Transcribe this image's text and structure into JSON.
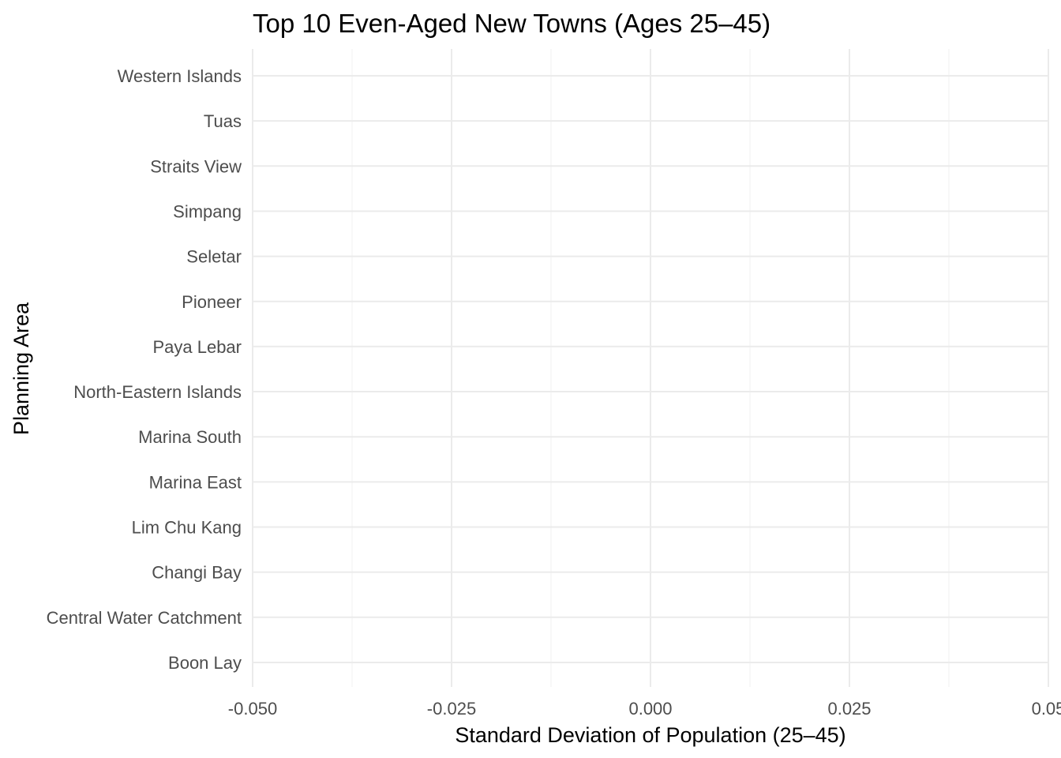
{
  "chart_data": {
    "type": "bar",
    "orientation": "horizontal",
    "title": "Top 10 Even-Aged New Towns (Ages 25–45)",
    "xlabel": "Standard Deviation of Population (25–45)",
    "ylabel": "Planning Area",
    "categories": [
      "Boon Lay",
      "Central Water Catchment",
      "Changi Bay",
      "Lim Chu Kang",
      "Marina East",
      "Marina South",
      "North-Eastern Islands",
      "Paya Lebar",
      "Pioneer",
      "Seletar",
      "Simpang",
      "Straits View",
      "Tuas",
      "Western Islands"
    ],
    "values": [
      0,
      0,
      0,
      0,
      0,
      0,
      0,
      0,
      0,
      0,
      0,
      0,
      0,
      0
    ],
    "xlim": [
      -0.05,
      0.05
    ],
    "xticks": [
      -0.05,
      -0.025,
      0,
      0.025,
      0.05
    ],
    "xtick_labels": [
      "-0.050",
      "-0.025",
      "0.000",
      "0.025",
      "0.05"
    ],
    "grid": true,
    "legend": "none",
    "colors": {
      "background": "#ffffff",
      "grid_major": "#ebebeb",
      "grid_minor": "#f2f2f2",
      "tick_text": "#4d4d4d",
      "title_text": "#000000"
    }
  }
}
